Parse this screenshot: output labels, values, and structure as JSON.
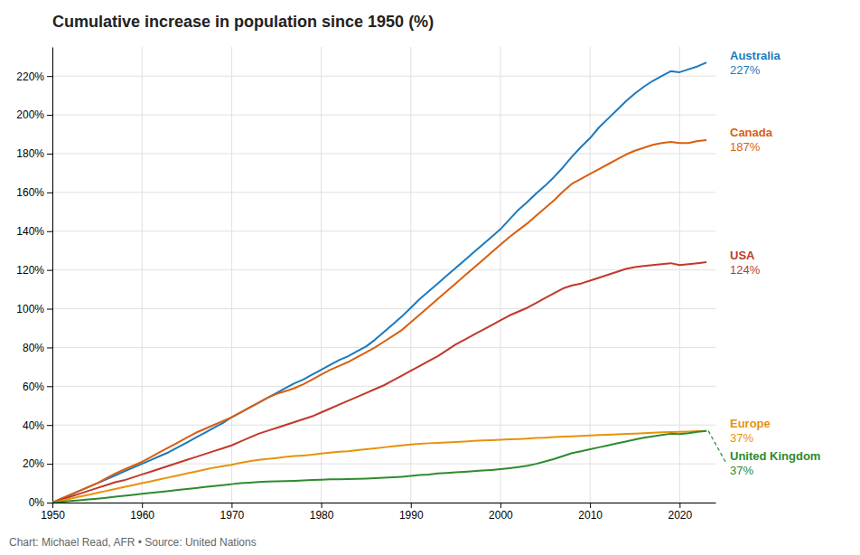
{
  "chart_data": {
    "type": "line",
    "title": "Cumulative increase in population since 1950 (%)",
    "footer": "Chart: Michael Read, AFR • Source: United Nations",
    "grid": true,
    "xlim": [
      1950,
      2024
    ],
    "ylim": [
      0,
      235
    ],
    "xticks": [
      1950,
      1960,
      1970,
      1980,
      1990,
      2000,
      2010,
      2020
    ],
    "yticks": [
      {
        "value": 0,
        "label": "0%"
      },
      {
        "value": 20,
        "label": "20%"
      },
      {
        "value": 40,
        "label": "40%"
      },
      {
        "value": 60,
        "label": "60%"
      },
      {
        "value": 80,
        "label": "80%"
      },
      {
        "value": 100,
        "label": "100%"
      },
      {
        "value": 120,
        "label": "120%"
      },
      {
        "value": 140,
        "label": "140%"
      },
      {
        "value": 160,
        "label": "160%"
      },
      {
        "value": 180,
        "label": "180%"
      },
      {
        "value": 200,
        "label": "200%"
      },
      {
        "value": 220,
        "label": "220%"
      }
    ],
    "x": [
      1950,
      1951,
      1952,
      1953,
      1954,
      1955,
      1956,
      1957,
      1958,
      1959,
      1960,
      1961,
      1962,
      1963,
      1964,
      1965,
      1966,
      1967,
      1968,
      1969,
      1970,
      1971,
      1972,
      1973,
      1974,
      1975,
      1976,
      1977,
      1978,
      1979,
      1980,
      1981,
      1982,
      1983,
      1984,
      1985,
      1986,
      1987,
      1988,
      1989,
      1990,
      1991,
      1992,
      1993,
      1994,
      1995,
      1996,
      1997,
      1998,
      1999,
      2000,
      2001,
      2002,
      2003,
      2004,
      2005,
      2006,
      2007,
      2008,
      2009,
      2010,
      2011,
      2012,
      2013,
      2014,
      2015,
      2016,
      2017,
      2018,
      2019,
      2020,
      2021,
      2022,
      2023
    ],
    "series": [
      {
        "name": "Australia",
        "color": "#1a7abf",
        "values": [
          0,
          2.0,
          4.0,
          6.0,
          8.0,
          10.0,
          12.0,
          14.0,
          16.0,
          18.0,
          20.0,
          22.0,
          24.0,
          26.0,
          28.5,
          31.0,
          33.5,
          36.0,
          38.5,
          41.0,
          44.0,
          46.5,
          49.0,
          51.5,
          54.0,
          56.5,
          59.0,
          61.5,
          63.5,
          66.0,
          68.5,
          71.0,
          73.5,
          75.5,
          78.0,
          80.5,
          84.0,
          88.0,
          92.0,
          96.0,
          100.5,
          105.0,
          109.0,
          113.0,
          117.0,
          121.0,
          125.0,
          129.0,
          133.0,
          137.0,
          141.0,
          146.0,
          151.0,
          155.0,
          159.5,
          163.5,
          168.0,
          173.0,
          178.5,
          183.5,
          188.0,
          193.5,
          198.0,
          202.5,
          207.0,
          211.0,
          214.5,
          217.5,
          220.0,
          222.5,
          222.0,
          223.5,
          225.0,
          227.0
        ],
        "value_labels": [
          null,
          null,
          null,
          null,
          null,
          null,
          null,
          null,
          null,
          null,
          null,
          null,
          null,
          null,
          null,
          null,
          null,
          null,
          null,
          null,
          null,
          null,
          null,
          null,
          null,
          null,
          null,
          null,
          null,
          null,
          null,
          null,
          null,
          null,
          null,
          null,
          null,
          null,
          null,
          null,
          null,
          null,
          null,
          null,
          null,
          null,
          null,
          null,
          null,
          null,
          null,
          null,
          null,
          null,
          null,
          null,
          null,
          null,
          null,
          null,
          null,
          null,
          null,
          null,
          null,
          null,
          null,
          null,
          null,
          null,
          null,
          null,
          null,
          "227%"
        ]
      },
      {
        "name": "Canada",
        "color": "#d95f0e",
        "values": [
          0,
          2.0,
          4.0,
          6.0,
          8.0,
          10.0,
          12.5,
          15.0,
          17.0,
          19.0,
          21.0,
          23.5,
          26.0,
          28.5,
          31.0,
          33.5,
          36.0,
          38.0,
          40.0,
          42.0,
          44.0,
          46.5,
          49.0,
          51.5,
          54.0,
          56.0,
          57.5,
          59.0,
          61.0,
          63.5,
          66.0,
          68.5,
          70.5,
          72.5,
          75.0,
          77.5,
          80.0,
          83.0,
          86.0,
          89.0,
          93.0,
          97.0,
          101.0,
          105.0,
          109.0,
          113.0,
          117.0,
          121.0,
          125.0,
          129.0,
          133.0,
          137.0,
          140.5,
          144.0,
          148.0,
          152.0,
          156.0,
          160.5,
          164.5,
          167.0,
          169.5,
          172.0,
          174.5,
          177.0,
          179.5,
          181.5,
          183.0,
          184.5,
          185.5,
          186.0,
          185.5,
          185.5,
          186.5,
          187.0
        ],
        "value_labels": [
          null,
          null,
          null,
          null,
          null,
          null,
          null,
          null,
          null,
          null,
          null,
          null,
          null,
          null,
          null,
          null,
          null,
          null,
          null,
          null,
          null,
          null,
          null,
          null,
          null,
          null,
          null,
          null,
          null,
          null,
          null,
          null,
          null,
          null,
          null,
          null,
          null,
          null,
          null,
          null,
          null,
          null,
          null,
          null,
          null,
          null,
          null,
          null,
          null,
          null,
          null,
          null,
          null,
          null,
          null,
          null,
          null,
          null,
          null,
          null,
          null,
          null,
          null,
          null,
          null,
          null,
          null,
          null,
          null,
          null,
          null,
          null,
          null,
          "187%"
        ]
      },
      {
        "name": "USA",
        "color": "#c0392b",
        "values": [
          0,
          1.5,
          3.0,
          4.5,
          6.0,
          7.5,
          9.0,
          10.5,
          11.5,
          13.0,
          14.5,
          16.0,
          17.5,
          19.0,
          20.5,
          22.0,
          23.5,
          25.0,
          26.5,
          28.0,
          29.5,
          31.5,
          33.5,
          35.5,
          37.0,
          38.5,
          40.0,
          41.5,
          43.0,
          44.5,
          46.5,
          48.5,
          50.5,
          52.5,
          54.5,
          56.5,
          58.5,
          60.5,
          63.0,
          65.5,
          68.0,
          70.5,
          73.0,
          75.5,
          78.5,
          81.5,
          84.0,
          86.5,
          89.0,
          91.5,
          94.0,
          96.5,
          98.5,
          100.5,
          103.0,
          105.5,
          108.0,
          110.5,
          112.0,
          113.0,
          114.5,
          116.0,
          117.5,
          119.0,
          120.5,
          121.5,
          122.0,
          122.5,
          123.0,
          123.5,
          122.5,
          123.0,
          123.5,
          124.0
        ],
        "value_labels": [
          null,
          null,
          null,
          null,
          null,
          null,
          null,
          null,
          null,
          null,
          null,
          null,
          null,
          null,
          null,
          null,
          null,
          null,
          null,
          null,
          null,
          null,
          null,
          null,
          null,
          null,
          null,
          null,
          null,
          null,
          null,
          null,
          null,
          null,
          null,
          null,
          null,
          null,
          null,
          null,
          null,
          null,
          null,
          null,
          null,
          null,
          null,
          null,
          null,
          null,
          null,
          null,
          null,
          null,
          null,
          null,
          null,
          null,
          null,
          null,
          null,
          null,
          null,
          null,
          null,
          null,
          null,
          null,
          null,
          null,
          null,
          null,
          null,
          "124%"
        ]
      },
      {
        "name": "Europe",
        "color": "#e6930a",
        "values": [
          0,
          1.0,
          2.0,
          3.0,
          4.0,
          5.0,
          6.0,
          7.0,
          8.0,
          9.0,
          10.0,
          11.0,
          12.0,
          13.0,
          14.0,
          15.0,
          16.0,
          17.0,
          18.0,
          18.8,
          19.5,
          20.5,
          21.3,
          22.0,
          22.5,
          23.0,
          23.5,
          24.0,
          24.3,
          24.7,
          25.3,
          25.8,
          26.2,
          26.5,
          27.0,
          27.5,
          28.0,
          28.5,
          29.0,
          29.5,
          30.0,
          30.3,
          30.6,
          30.8,
          31.0,
          31.2,
          31.5,
          31.8,
          32.0,
          32.2,
          32.4,
          32.6,
          32.8,
          33.0,
          33.3,
          33.5,
          33.8,
          34.0,
          34.2,
          34.4,
          34.6,
          34.8,
          35.0,
          35.2,
          35.4,
          35.6,
          35.8,
          36.0,
          36.2,
          36.4,
          36.5,
          36.6,
          36.8,
          37.0
        ],
        "value_labels": [
          null,
          null,
          null,
          null,
          null,
          null,
          null,
          null,
          null,
          null,
          null,
          null,
          null,
          null,
          null,
          null,
          null,
          null,
          null,
          null,
          null,
          null,
          null,
          null,
          null,
          null,
          null,
          null,
          null,
          null,
          null,
          null,
          null,
          null,
          null,
          null,
          null,
          null,
          null,
          null,
          null,
          null,
          null,
          null,
          null,
          null,
          null,
          null,
          null,
          null,
          null,
          null,
          null,
          null,
          null,
          null,
          null,
          null,
          null,
          null,
          null,
          null,
          null,
          null,
          null,
          null,
          null,
          null,
          null,
          null,
          null,
          null,
          null,
          "37%"
        ]
      },
      {
        "name": "United Kingdom",
        "color": "#2e8b2e",
        "values": [
          0,
          0.4,
          0.8,
          1.2,
          1.6,
          2.0,
          2.5,
          3.0,
          3.5,
          4.0,
          4.5,
          5.0,
          5.5,
          6.0,
          6.5,
          7.0,
          7.5,
          8.0,
          8.5,
          9.0,
          9.5,
          10.0,
          10.3,
          10.6,
          10.8,
          11.0,
          11.1,
          11.2,
          11.4,
          11.6,
          11.8,
          12.0,
          12.0,
          12.1,
          12.2,
          12.4,
          12.6,
          12.8,
          13.0,
          13.3,
          13.7,
          14.2,
          14.5,
          15.0,
          15.3,
          15.6,
          15.9,
          16.2,
          16.5,
          16.8,
          17.2,
          17.7,
          18.3,
          19.0,
          20.0,
          21.2,
          22.5,
          24.0,
          25.5,
          26.5,
          27.5,
          28.5,
          29.5,
          30.5,
          31.5,
          32.5,
          33.5,
          34.2,
          34.8,
          35.5,
          35.3,
          35.8,
          36.5,
          37.0
        ],
        "value_labels": [
          null,
          null,
          null,
          null,
          null,
          null,
          null,
          null,
          null,
          null,
          null,
          null,
          null,
          null,
          null,
          null,
          null,
          null,
          null,
          null,
          null,
          null,
          null,
          null,
          null,
          null,
          null,
          null,
          null,
          null,
          null,
          null,
          null,
          null,
          null,
          null,
          null,
          null,
          null,
          null,
          null,
          null,
          null,
          null,
          null,
          null,
          null,
          null,
          null,
          null,
          null,
          null,
          null,
          null,
          null,
          null,
          null,
          null,
          null,
          null,
          null,
          null,
          null,
          null,
          null,
          null,
          null,
          null,
          null,
          null,
          null,
          null,
          null,
          "37%"
        ]
      }
    ]
  }
}
